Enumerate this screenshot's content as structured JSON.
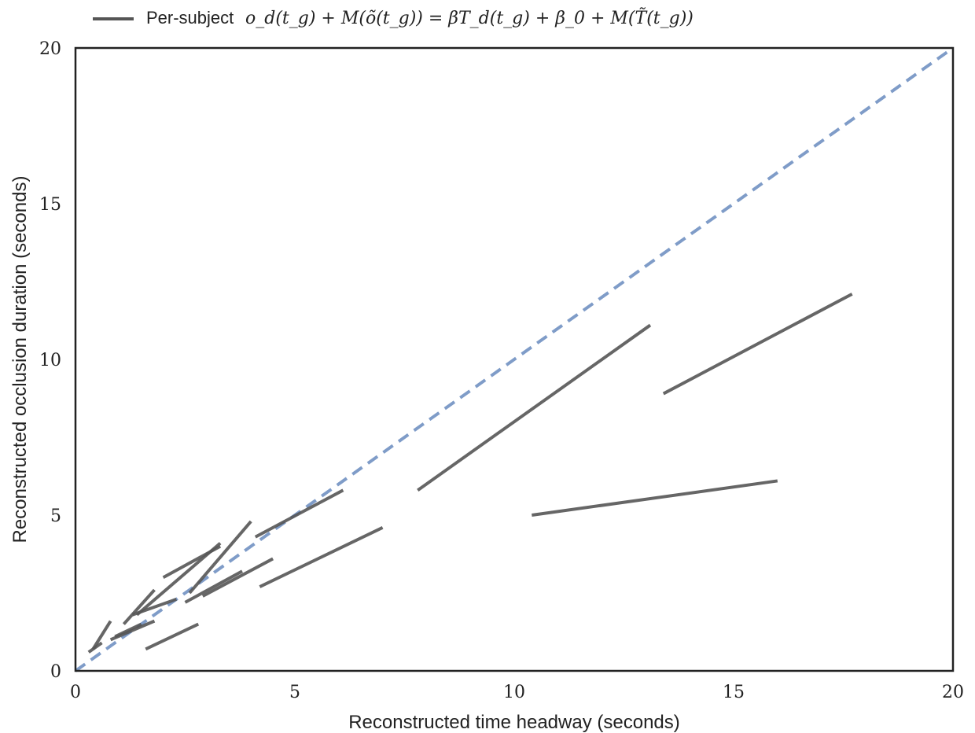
{
  "chart_data": {
    "type": "line",
    "title": "",
    "xlabel": "Reconstructed time headway (seconds)",
    "ylabel": "Reconstructed occlusion duration (seconds)",
    "xlim": [
      0,
      20
    ],
    "ylim": [
      0,
      20
    ],
    "xticks": [
      "0",
      "5",
      "10",
      "15",
      "20"
    ],
    "yticks": [
      "0",
      "5",
      "10",
      "15",
      "20"
    ],
    "grid": false,
    "legend": {
      "placement": "top-left",
      "label_text": "Per-subject",
      "label_math": "o_d(t_g) + M(õ(t_g)) = βT_d(t_g) + β_0 + M(T̃(t_g))"
    },
    "colors": {
      "subject_line": "#555555",
      "identity_line": "#7f9cc8",
      "axes": "#222222"
    },
    "reference_line": {
      "name": "",
      "style": "dashed",
      "x": [
        0,
        20
      ],
      "y": [
        0,
        20
      ]
    },
    "series": [
      {
        "x": [
          13.1,
          7.8
        ],
        "y": [
          11.1,
          5.8
        ]
      },
      {
        "x": [
          17.7,
          13.4
        ],
        "y": [
          12.1,
          8.9
        ]
      },
      {
        "x": [
          16.0,
          10.4
        ],
        "y": [
          6.1,
          5.0
        ]
      },
      {
        "x": [
          7.0,
          4.2
        ],
        "y": [
          4.6,
          2.7
        ]
      },
      {
        "x": [
          6.1,
          4.1
        ],
        "y": [
          5.8,
          4.3
        ]
      },
      {
        "x": [
          4.5,
          2.9
        ],
        "y": [
          3.6,
          2.4
        ]
      },
      {
        "x": [
          4.0,
          2.6
        ],
        "y": [
          4.8,
          2.5
        ]
      },
      {
        "x": [
          3.8,
          2.5
        ],
        "y": [
          3.2,
          2.2
        ]
      },
      {
        "x": [
          3.3,
          2.0
        ],
        "y": [
          4.0,
          3.0
        ]
      },
      {
        "x": [
          3.3,
          1.4
        ],
        "y": [
          4.1,
          1.8
        ]
      },
      {
        "x": [
          2.8,
          1.6
        ],
        "y": [
          1.5,
          0.7
        ]
      },
      {
        "x": [
          2.3,
          1.3
        ],
        "y": [
          2.3,
          1.8
        ]
      },
      {
        "x": [
          1.8,
          1.1
        ],
        "y": [
          2.6,
          1.5
        ]
      },
      {
        "x": [
          1.8,
          0.8
        ],
        "y": [
          1.6,
          1.0
        ]
      },
      {
        "x": [
          1.5,
          0.9
        ],
        "y": [
          1.5,
          1.1
        ]
      },
      {
        "x": [
          0.8,
          0.4
        ],
        "y": [
          1.6,
          0.7
        ]
      },
      {
        "x": [
          0.6,
          0.3
        ],
        "y": [
          0.9,
          0.6
        ]
      }
    ]
  }
}
